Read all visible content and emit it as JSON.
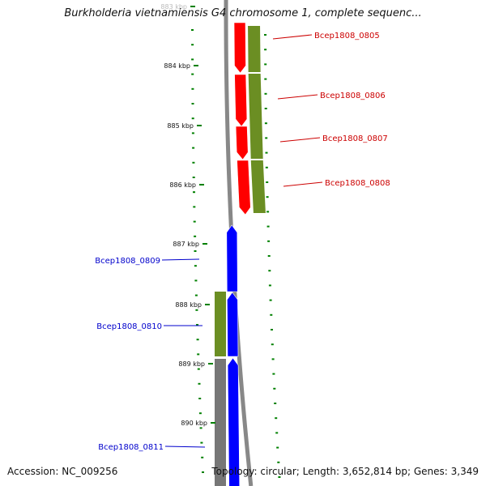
{
  "title": "Burkholderia vietnamiensis G4 chromosome 1, complete sequenc...",
  "footer": {
    "accession": "Accession: NC_009256",
    "summary": "Topology: circular; Length: 3,652,814 bp; Genes: 3,349"
  },
  "ticks": [
    "883 kbp",
    "884 kbp",
    "885 kbp",
    "886 kbp",
    "887 kbp",
    "888 kbp",
    "889 kbp",
    "890 kbp"
  ],
  "genes_forward": [
    "Bcep1808_0805",
    "Bcep1808_0806",
    "Bcep1808_0807",
    "Bcep1808_0808"
  ],
  "genes_reverse": [
    "Bcep1808_0809",
    "Bcep1808_0810",
    "Bcep1808_0811"
  ],
  "colors": {
    "forward_gene": "#ff0000",
    "reverse_gene": "#0000ff",
    "cds_track": "#6b8e23",
    "other_track": "#777777",
    "backbone": "#888888",
    "dots": "#008000",
    "forward_label": "#cc0000",
    "reverse_label": "#0000cc"
  }
}
